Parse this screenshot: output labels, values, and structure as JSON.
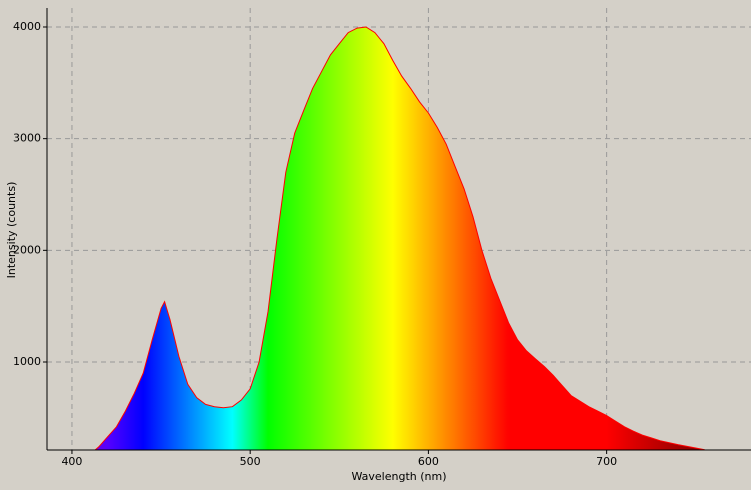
{
  "chart_data": {
    "type": "area",
    "x_label": "Wavelength (nm)",
    "y_label": "Intensity (counts)",
    "x": [
      413,
      415,
      420,
      425,
      430,
      435,
      440,
      445,
      450,
      452,
      455,
      460,
      465,
      470,
      475,
      480,
      485,
      490,
      495,
      500,
      505,
      510,
      515,
      520,
      525,
      530,
      535,
      540,
      545,
      550,
      555,
      560,
      565,
      570,
      575,
      580,
      585,
      590,
      595,
      600,
      605,
      610,
      615,
      620,
      625,
      630,
      635,
      640,
      645,
      650,
      655,
      660,
      665,
      670,
      675,
      680,
      690,
      695,
      700,
      705,
      710,
      715,
      720,
      725,
      730,
      740,
      750,
      755
    ],
    "series": [
      {
        "color": "#ff0000",
        "values": [
          212,
          240,
          330,
          420,
          560,
          720,
          900,
          1200,
          1480,
          1540,
          1380,
          1050,
          800,
          680,
          620,
          600,
          590,
          600,
          660,
          760,
          1000,
          1450,
          2100,
          2700,
          3050,
          3250,
          3450,
          3600,
          3750,
          3850,
          3950,
          3990,
          4000,
          3950,
          3850,
          3700,
          3560,
          3450,
          3330,
          3230,
          3100,
          2950,
          2750,
          2550,
          2300,
          2000,
          1750,
          1550,
          1350,
          1200,
          1100,
          1030,
          960,
          880,
          790,
          700,
          600,
          560,
          520,
          470,
          420,
          380,
          345,
          320,
          295,
          260,
          230,
          215
        ]
      }
    ],
    "xlim": [
      386,
      781
    ],
    "ylim": [
      212,
      4170
    ],
    "xticks": [
      400,
      500,
      600,
      700
    ],
    "yticks": [
      1000,
      2000,
      3000,
      4000
    ],
    "grid": true,
    "fill": "spectrum"
  }
}
